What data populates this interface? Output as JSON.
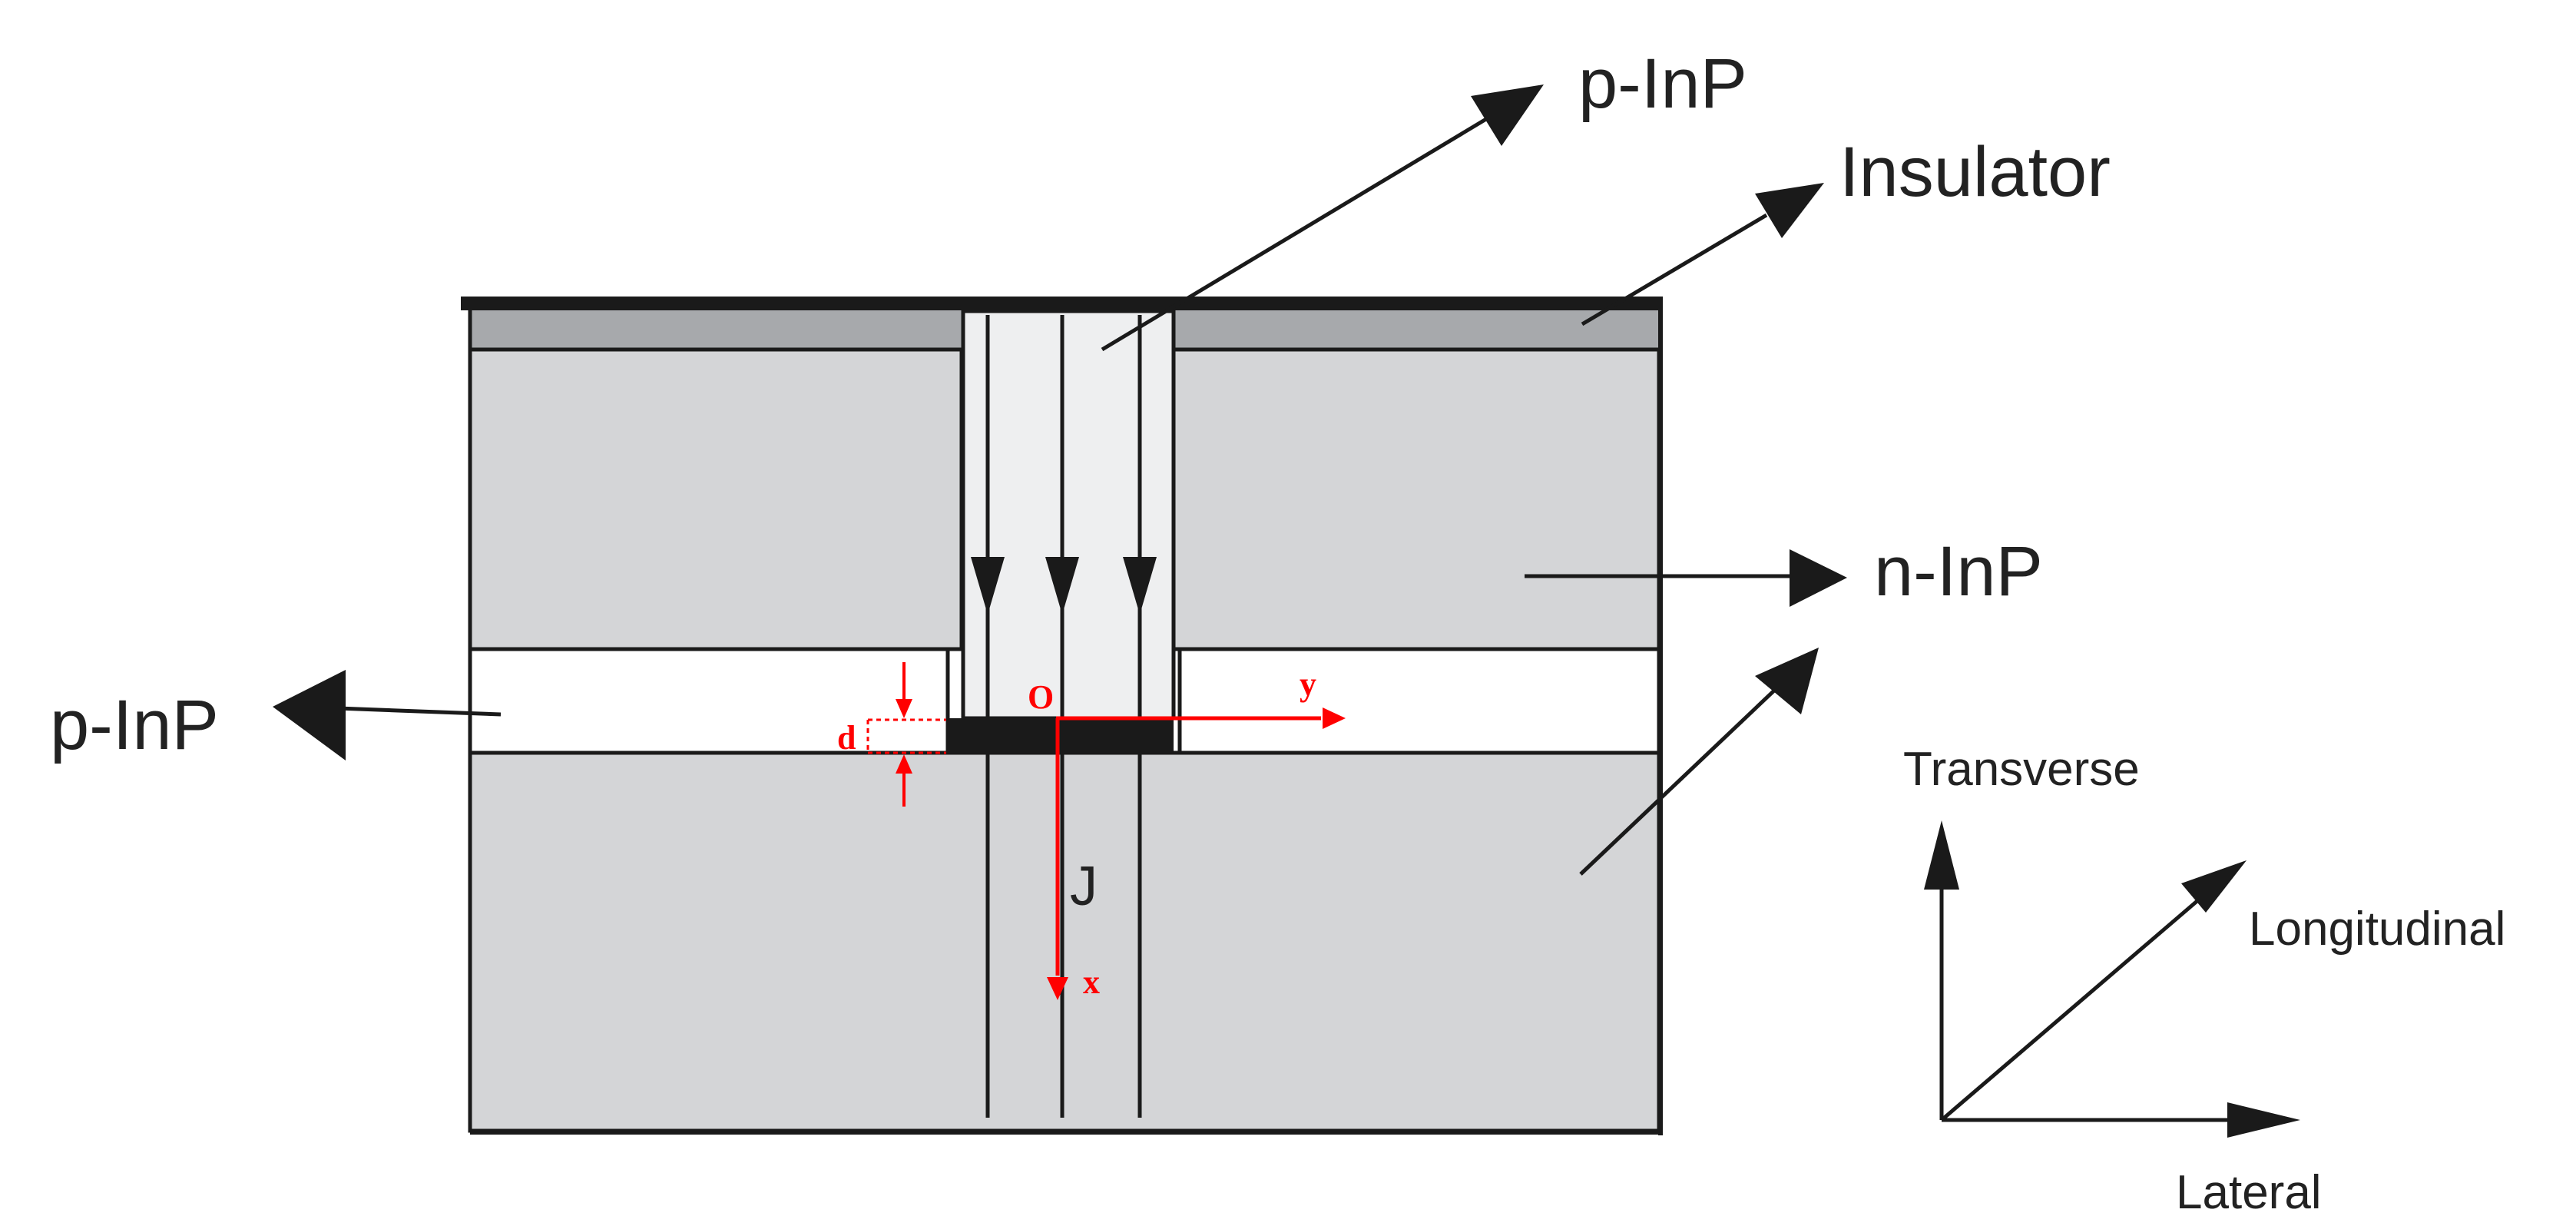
{
  "labels": {
    "p_inp_top": "p-InP",
    "insulator": "Insulator",
    "n_inp": "n-InP",
    "p_inp_left": "p-InP",
    "current": "J",
    "origin": "O",
    "x_axis": "x",
    "y_axis": "y",
    "thickness": "d"
  },
  "axes_legend": {
    "transverse": "Transverse",
    "longitudinal": "Longitudinal",
    "lateral": "Lateral"
  },
  "colors": {
    "fill_gray": "#d4d5d7",
    "insulator_gray": "#a7a9ac",
    "channel_gray": "#eeeff0",
    "line": "#1a1a1a",
    "annotation_red": "#ff0000"
  }
}
